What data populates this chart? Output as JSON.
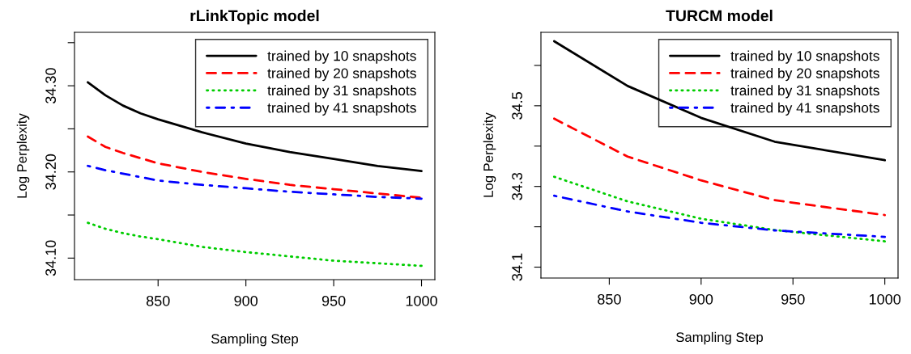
{
  "chart_data": [
    {
      "type": "line",
      "title": "rLinkTopic model",
      "xlabel": "Sampling Step",
      "ylabel": "Log Perplexity",
      "xlim": [
        802.4,
        1007.6
      ],
      "ylim": [
        34.075,
        34.362
      ],
      "xticks": [
        850,
        900,
        950,
        1000
      ],
      "yticks": [
        {
          "value": 34.1,
          "label": "34.10"
        },
        {
          "value": 34.15,
          "label": null
        },
        {
          "value": 34.2,
          "label": "34.20"
        },
        {
          "value": 34.25,
          "label": null
        },
        {
          "value": 34.3,
          "label": "34.30"
        },
        {
          "value": 34.35,
          "label": null
        }
      ],
      "grid": false,
      "legend": "top right",
      "marker": "none",
      "x": [
        810,
        820,
        830,
        840,
        850,
        875,
        900,
        925,
        950,
        975,
        1000
      ],
      "series": [
        {
          "name": "trained by 10 snapshots",
          "color": "#000000",
          "line_style": "solid",
          "values": [
            34.304,
            34.289,
            34.277,
            34.268,
            34.261,
            34.246,
            34.233,
            34.223,
            34.215,
            34.207,
            34.201
          ]
        },
        {
          "name": "trained by 20 snapshots",
          "color": "#ff0000",
          "line_style": "dashed",
          "values": [
            34.241,
            34.229,
            34.222,
            34.216,
            34.21,
            34.2,
            34.192,
            34.185,
            34.18,
            34.175,
            34.17
          ]
        },
        {
          "name": "trained by 31 snapshots",
          "color": "#00cd00",
          "line_style": "dotted",
          "values": [
            34.141,
            34.134,
            34.129,
            34.125,
            34.122,
            34.113,
            34.107,
            34.102,
            34.097,
            34.094,
            34.091
          ]
        },
        {
          "name": "trained by 41 snapshots",
          "color": "#0000ff",
          "line_style": "dashdot",
          "values": [
            34.207,
            34.202,
            34.198,
            34.194,
            34.19,
            34.185,
            34.181,
            34.177,
            34.174,
            34.171,
            34.169
          ]
        }
      ]
    },
    {
      "type": "line",
      "title": "TURCM model",
      "xlabel": "Sampling Step",
      "ylabel": "Log Perplexity",
      "xlim": [
        812.8,
        1007.2
      ],
      "ylim": [
        34.073,
        34.682
      ],
      "xticks": [
        850,
        900,
        950,
        1000
      ],
      "yticks": [
        {
          "value": 34.1,
          "label": "34.1"
        },
        {
          "value": 34.2,
          "label": null
        },
        {
          "value": 34.3,
          "label": "34.3"
        },
        {
          "value": 34.4,
          "label": null
        },
        {
          "value": 34.5,
          "label": "34.5"
        },
        {
          "value": 34.6,
          "label": null
        }
      ],
      "grid": false,
      "legend": "top right",
      "marker": "none",
      "x": [
        820,
        860,
        900,
        940,
        1000
      ],
      "series": [
        {
          "name": "trained by 10 snapshots",
          "color": "#000000",
          "line_style": "solid",
          "values": [
            34.66,
            34.549,
            34.47,
            34.411,
            34.365
          ]
        },
        {
          "name": "trained by 20 snapshots",
          "color": "#ff0000",
          "line_style": "dashed",
          "values": [
            34.468,
            34.374,
            34.315,
            34.266,
            34.229
          ]
        },
        {
          "name": "trained by 31 snapshots",
          "color": "#00cd00",
          "line_style": "dotted",
          "values": [
            34.324,
            34.263,
            34.22,
            34.192,
            34.164
          ]
        },
        {
          "name": "trained by 41 snapshots",
          "color": "#0000ff",
          "line_style": "dashdot",
          "values": [
            34.277,
            34.238,
            34.21,
            34.191,
            34.175
          ]
        }
      ]
    }
  ]
}
